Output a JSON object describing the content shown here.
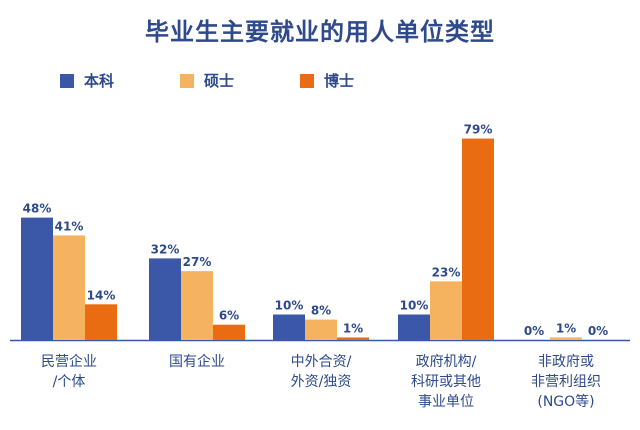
{
  "chart_data": {
    "type": "bar",
    "title": "毕业生主要就业的用人单位类型",
    "xlabel": "",
    "ylabel": "",
    "ylim": [
      0,
      80
    ],
    "grid": false,
    "legend_position": "top-left",
    "categories": [
      [
        "民营企业",
        "/个体"
      ],
      [
        "国有企业"
      ],
      [
        "中外合资/",
        "外资/独资"
      ],
      [
        "政府机构/",
        "科研或其他",
        "事业单位"
      ],
      [
        "非政府或",
        "非营利组织",
        "(NGO等)"
      ]
    ],
    "series": [
      {
        "name": "本科",
        "color": "#3b58a8",
        "values": [
          48,
          32,
          10,
          10,
          0
        ],
        "labels": [
          "48%",
          "32%",
          "10%",
          "10%",
          "0%"
        ]
      },
      {
        "name": "硕士",
        "color": "#f5b25f",
        "values": [
          41,
          27,
          8,
          23,
          1
        ],
        "labels": [
          "41%",
          "27%",
          "8%",
          "23%",
          "1%"
        ]
      },
      {
        "name": "博士",
        "color": "#ea6c12",
        "values": [
          14,
          6,
          1,
          79,
          0
        ],
        "labels": [
          "14%",
          "6%",
          "1%",
          "79%",
          "0%"
        ]
      }
    ]
  }
}
